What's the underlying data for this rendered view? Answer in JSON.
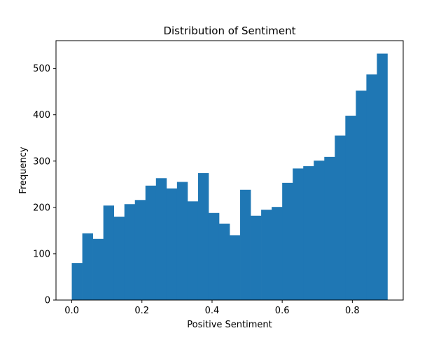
{
  "chart_data": {
    "type": "bar",
    "title": "Distribution of Sentiment",
    "xlabel": "Positive Sentiment",
    "ylabel": "Frequency",
    "xlim": [
      -0.045,
      0.945
    ],
    "ylim": [
      0,
      560
    ],
    "bar_color": "#1f77b4",
    "bin_start": 0.0,
    "bin_width": 0.03,
    "values": [
      80,
      144,
      132,
      204,
      180,
      207,
      216,
      247,
      263,
      241,
      255,
      213,
      274,
      188,
      165,
      140,
      238,
      182,
      195,
      201,
      253,
      284,
      289,
      301,
      309,
      355,
      398,
      452,
      487,
      532
    ],
    "xticks": [
      0.0,
      0.2,
      0.4,
      0.6,
      0.8
    ],
    "xtick_labels": [
      "0.0",
      "0.2",
      "0.4",
      "0.6",
      "0.8"
    ],
    "yticks": [
      0,
      100,
      200,
      300,
      400,
      500
    ],
    "ytick_labels": [
      "0",
      "100",
      "200",
      "300",
      "400",
      "500"
    ],
    "grid": false,
    "legend": false
  }
}
